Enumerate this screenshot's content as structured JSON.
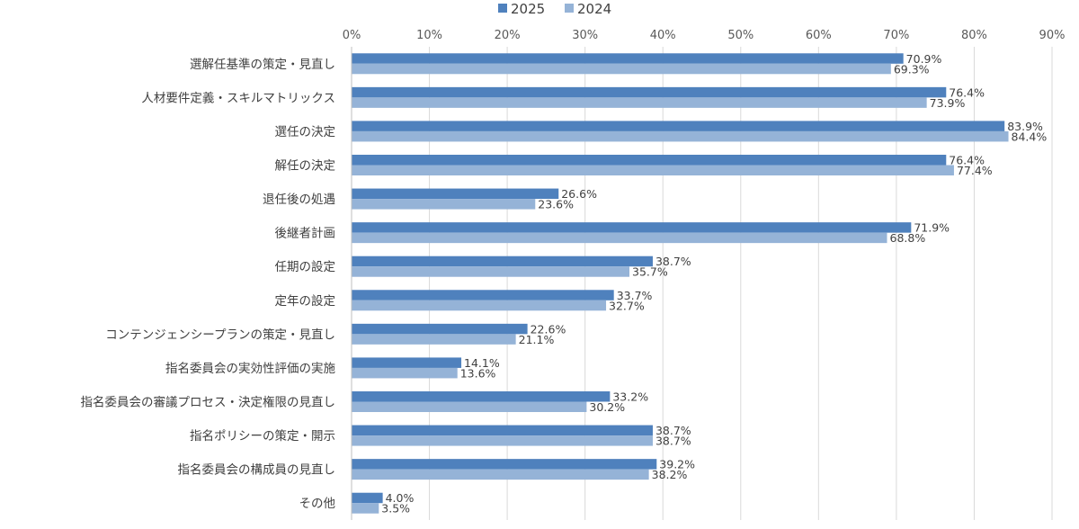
{
  "chart_data": {
    "type": "bar",
    "orientation": "horizontal",
    "title": "",
    "xlabel": "",
    "ylabel": "",
    "xlim": [
      0,
      90
    ],
    "x_ticks": [
      "0%",
      "10%",
      "20%",
      "30%",
      "40%",
      "50%",
      "60%",
      "70%",
      "80%",
      "90%"
    ],
    "legend_position": "top",
    "grid": true,
    "categories": [
      "選解任基準の策定・見直し",
      "人材要件定義・スキルマトリックス",
      "選任の決定",
      "解任の決定",
      "退任後の処遇",
      "後継者計画",
      "任期の設定",
      "定年の設定",
      "コンテンジェンシープランの策定・見直し",
      "指名委員会の実効性評価の実施",
      "指名委員会の審議プロセス・決定権限の見直し",
      "指名ポリシーの策定・開示",
      "指名委員会の構成員の見直し",
      "その他"
    ],
    "series": [
      {
        "name": "2025",
        "color": "#4f81bd",
        "values": [
          70.9,
          76.4,
          83.9,
          76.4,
          26.6,
          71.9,
          38.7,
          33.7,
          22.6,
          14.1,
          33.2,
          38.7,
          39.2,
          4.0
        ],
        "labels": [
          "70.9%",
          "76.4%",
          "83.9%",
          "76.4%",
          "26.6%",
          "71.9%",
          "38.7%",
          "33.7%",
          "22.6%",
          "14.1%",
          "33.2%",
          "38.7%",
          "39.2%",
          "4.0%"
        ]
      },
      {
        "name": "2024",
        "color": "#95b3d7",
        "values": [
          69.3,
          73.9,
          84.4,
          77.4,
          23.6,
          68.8,
          35.7,
          32.7,
          21.1,
          13.6,
          30.2,
          38.7,
          38.2,
          3.5
        ],
        "labels": [
          "69.3%",
          "73.9%",
          "84.4%",
          "77.4%",
          "23.6%",
          "68.8%",
          "35.7%",
          "32.7%",
          "21.1%",
          "13.6%",
          "30.2%",
          "38.7%",
          "38.2%",
          "3.5%"
        ]
      }
    ]
  }
}
